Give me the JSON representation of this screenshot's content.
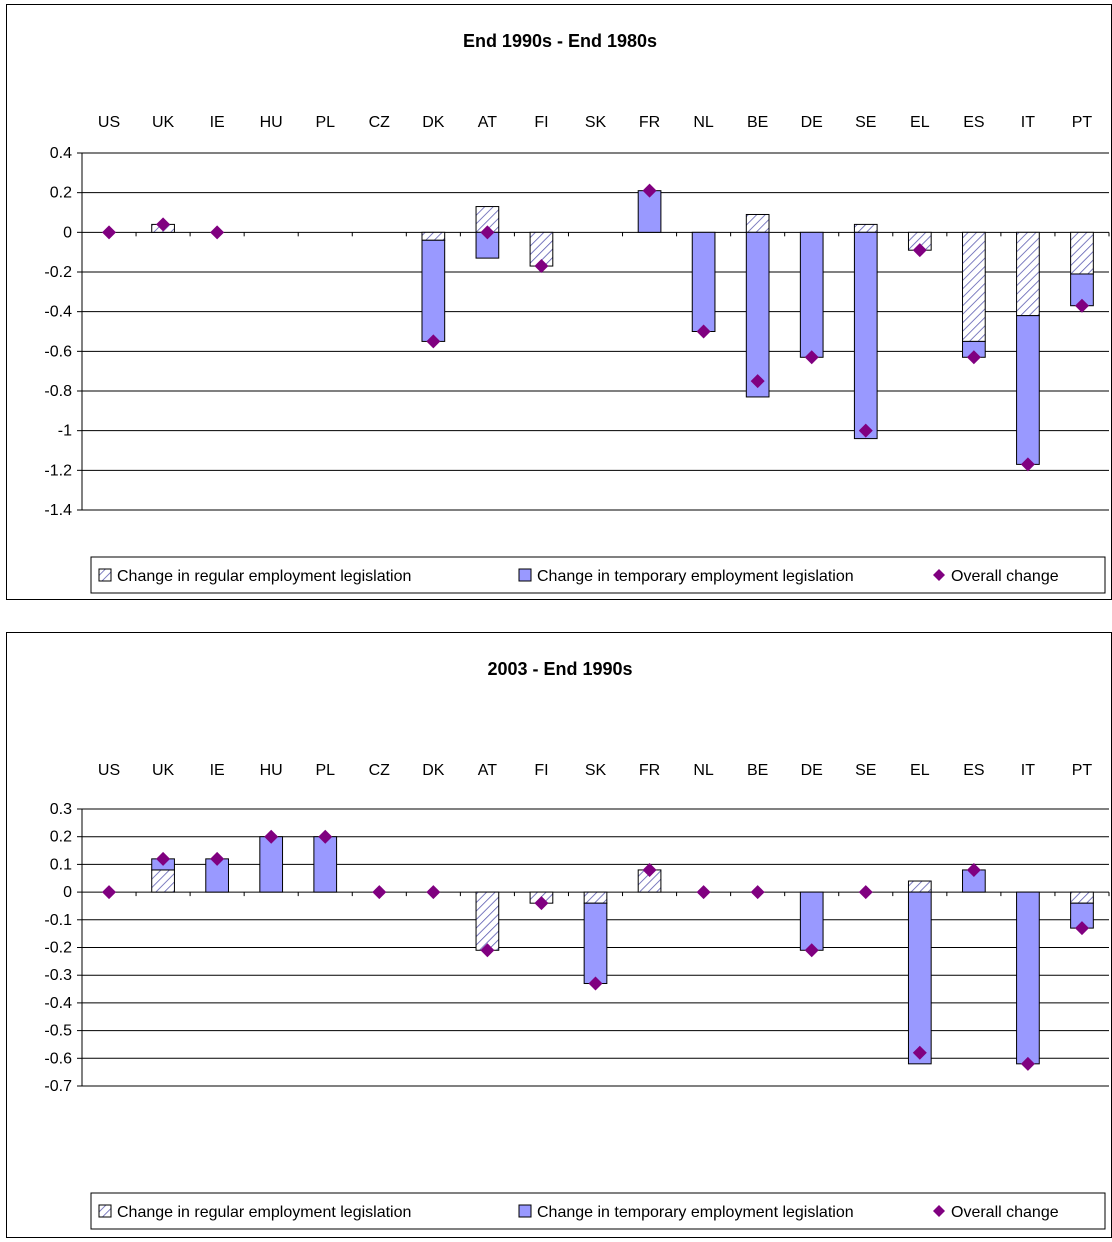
{
  "colors": {
    "temporary_fill": "#9999ff",
    "regular_fill": "#ffffff",
    "regular_hatch": "#5b5bb0",
    "overall_marker": "#800080",
    "gridline": "#000000"
  },
  "chart_data": [
    {
      "type": "bar",
      "stacked": true,
      "title": "End 1990s - End 1980s",
      "categories": [
        "US",
        "UK",
        "IE",
        "HU",
        "PL",
        "CZ",
        "DK",
        "AT",
        "FI",
        "SK",
        "FR",
        "NL",
        "BE",
        "DE",
        "SE",
        "EL",
        "ES",
        "IT",
        "PT"
      ],
      "ylim": [
        -1.4,
        0.4
      ],
      "yticks": [
        0.4,
        0.2,
        0,
        -0.2,
        -0.4,
        -0.6,
        -0.8,
        -1,
        -1.2,
        -1.4
      ],
      "ytick_labels": [
        "0.4",
        "0.2",
        "0",
        "-0.2",
        "-0.4",
        "-0.6",
        "-0.8",
        "-1",
        "-1.2",
        "-1.4"
      ],
      "grid": true,
      "legend_position": "bottom",
      "series": [
        {
          "name": "Change in regular employment legislation",
          "kind": "hatched-bar",
          "values": [
            0,
            0.04,
            0,
            0,
            0,
            0,
            -0.04,
            0.13,
            -0.17,
            0,
            0,
            0,
            0.09,
            0,
            0.04,
            -0.09,
            -0.55,
            -0.42,
            -0.21
          ]
        },
        {
          "name": "Change in temporary employment legislation",
          "kind": "bar",
          "values": [
            0,
            0,
            0,
            0,
            0,
            0,
            -0.51,
            -0.13,
            0,
            0,
            0.21,
            -0.5,
            -0.83,
            -0.63,
            -1.04,
            0,
            -0.08,
            -0.75,
            -0.16
          ]
        },
        {
          "name": "Overall change",
          "kind": "marker",
          "values": [
            0,
            0.04,
            0,
            null,
            null,
            null,
            -0.55,
            0,
            -0.17,
            null,
            0.21,
            -0.5,
            -0.75,
            -0.63,
            -1.0,
            -0.09,
            -0.63,
            -1.17,
            -0.37
          ]
        }
      ]
    },
    {
      "type": "bar",
      "stacked": true,
      "title": "2003 - End 1990s",
      "categories": [
        "US",
        "UK",
        "IE",
        "HU",
        "PL",
        "CZ",
        "DK",
        "AT",
        "FI",
        "SK",
        "FR",
        "NL",
        "BE",
        "DE",
        "SE",
        "EL",
        "ES",
        "IT",
        "PT"
      ],
      "ylim": [
        -0.7,
        0.3
      ],
      "yticks": [
        0.3,
        0.2,
        0.1,
        0,
        -0.1,
        -0.2,
        -0.3,
        -0.4,
        -0.5,
        -0.6,
        -0.7
      ],
      "ytick_labels": [
        "0.3",
        "0.2",
        "0.1",
        "0",
        "-0.1",
        "-0.2",
        "-0.3",
        "-0.4",
        "-0.5",
        "-0.6",
        "-0.7"
      ],
      "grid": true,
      "legend_position": "bottom",
      "series": [
        {
          "name": "Change in regular employment legislation",
          "kind": "hatched-bar",
          "values": [
            0,
            0.08,
            0,
            0,
            0,
            0,
            0,
            -0.21,
            -0.04,
            -0.04,
            0.08,
            0,
            0,
            0,
            0,
            0.04,
            0,
            0,
            -0.04
          ]
        },
        {
          "name": "Change in temporary employment legislation",
          "kind": "bar",
          "values": [
            0,
            0.04,
            0.12,
            0.2,
            0.2,
            0,
            0,
            0,
            0,
            -0.29,
            0,
            0,
            0,
            -0.21,
            0,
            -0.62,
            0.08,
            -0.62,
            -0.09
          ]
        },
        {
          "name": "Overall change",
          "kind": "marker",
          "values": [
            0,
            0.12,
            0.12,
            0.2,
            0.2,
            0,
            0,
            -0.21,
            -0.04,
            -0.33,
            0.08,
            0,
            0,
            -0.21,
            0,
            -0.58,
            0.08,
            -0.62,
            -0.13
          ]
        }
      ]
    }
  ]
}
